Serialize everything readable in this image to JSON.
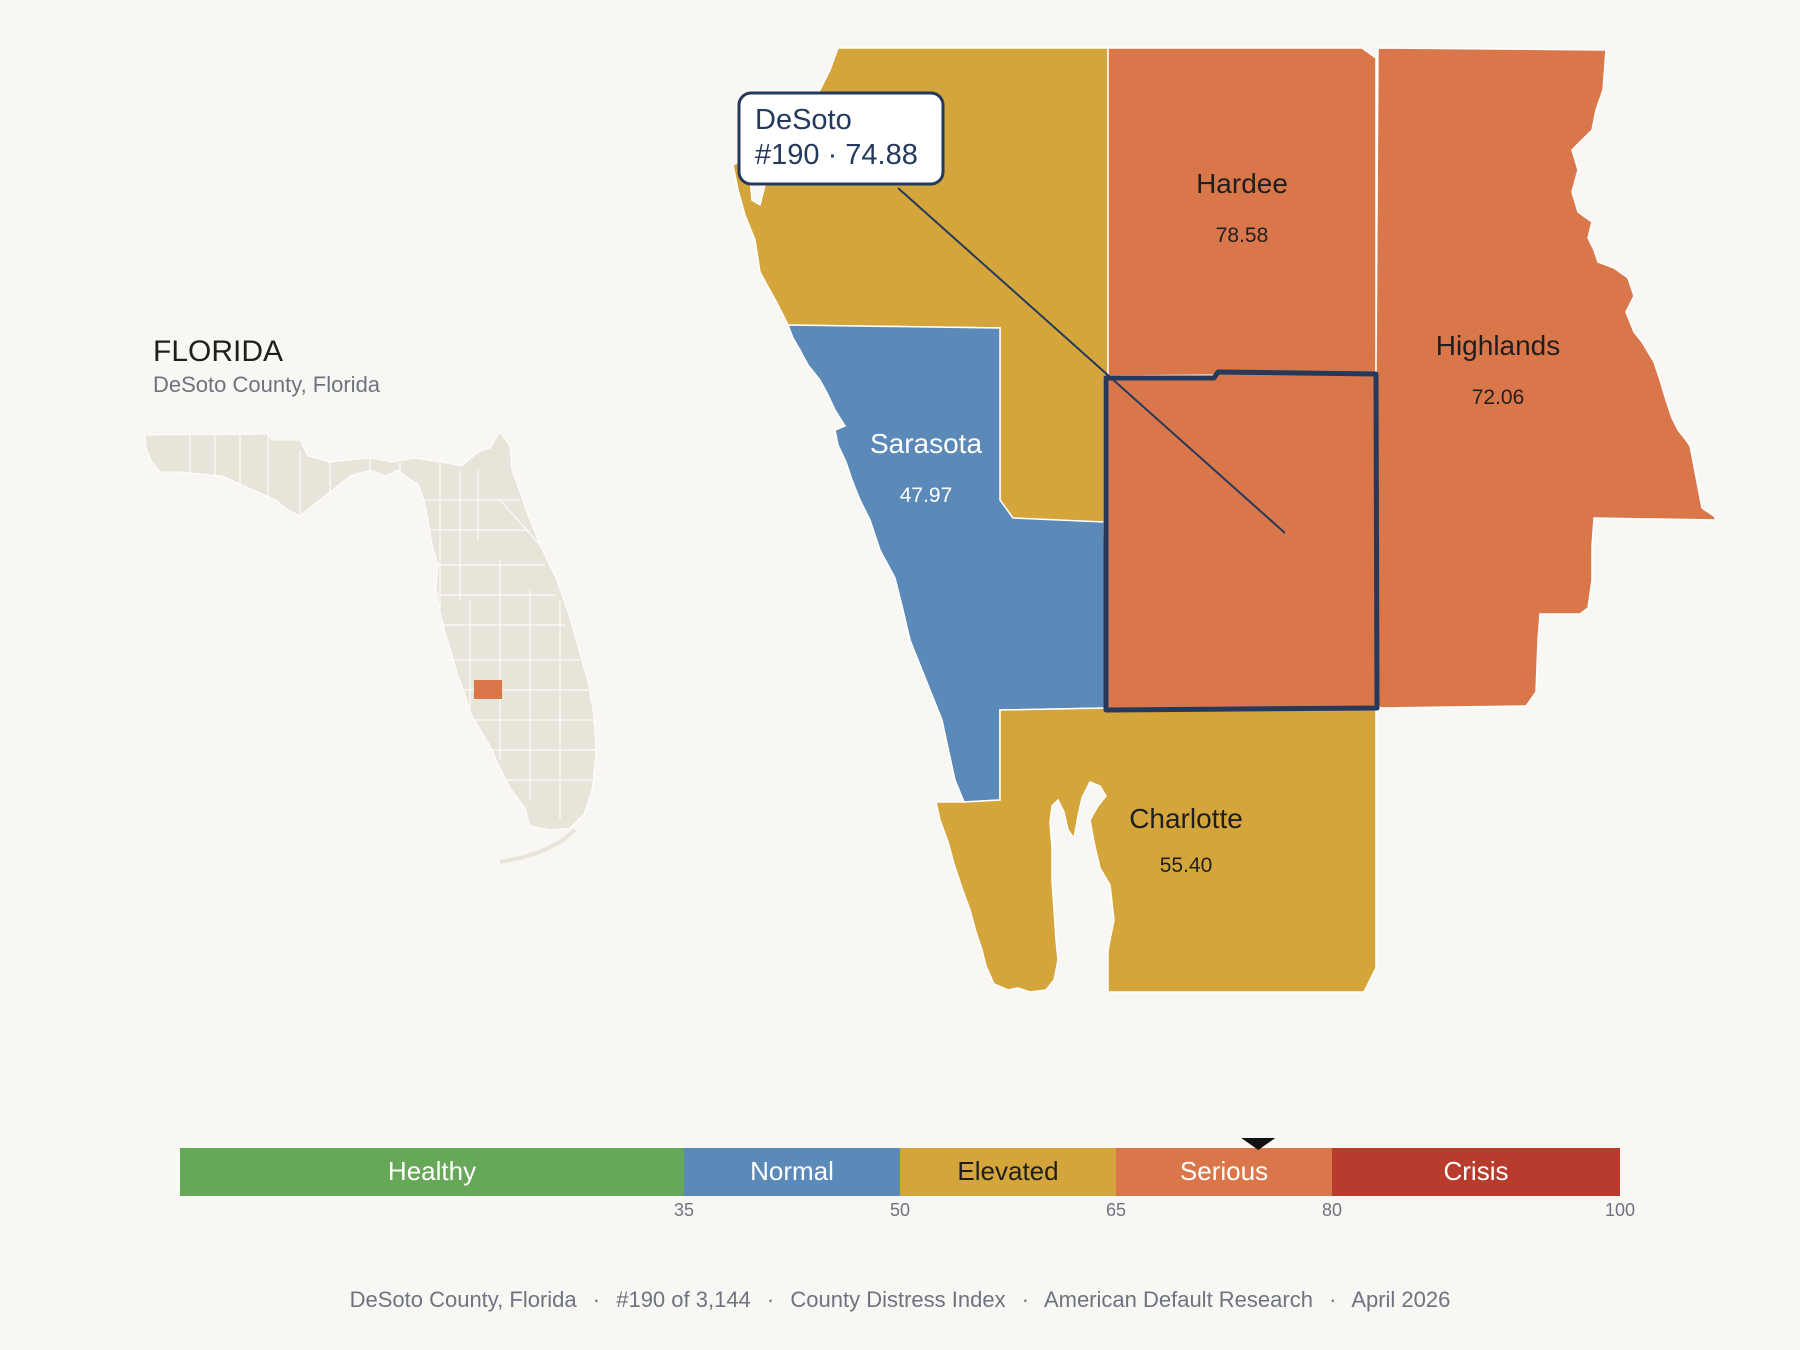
{
  "inset": {
    "state_title": "FLORIDA",
    "subtitle": "DeSoto County, Florida",
    "base_color": "#e9e4da",
    "highlight_color": "#d9774b"
  },
  "counties": {
    "hardee": {
      "name": "Hardee",
      "value": "78.58",
      "color": "#d9774b",
      "text_color": "#1f1f1f"
    },
    "highlands": {
      "name": "Highlands",
      "value": "72.06",
      "color": "#d9774b",
      "text_color": "#1f1f1f"
    },
    "sarasota": {
      "name": "Sarasota",
      "value": "47.97",
      "color": "#5b89b8",
      "text_color": "#ffffff"
    },
    "charlotte": {
      "name": "Charlotte",
      "value": "55.40",
      "color": "#d4a53a",
      "text_color": "#1f1f1f"
    },
    "manatee": {
      "color": "#d4a53a"
    },
    "desoto": {
      "color": "#d9774b",
      "outline": "#24395c"
    }
  },
  "callout": {
    "name": "DeSoto",
    "rank_score": "#190 · 74.88"
  },
  "legend": {
    "marker_value": 74.88,
    "bands": [
      {
        "label": "Healthy",
        "from": 0,
        "to": 35,
        "color": "#67a758",
        "text_color": "#ffffff"
      },
      {
        "label": "Normal",
        "from": 35,
        "to": 50,
        "color": "#5b89b8",
        "text_color": "#ffffff"
      },
      {
        "label": "Elevated",
        "from": 50,
        "to": 65,
        "color": "#d4a53a",
        "text_color": "#1f1f1f"
      },
      {
        "label": "Serious",
        "from": 65,
        "to": 80,
        "color": "#d9774b",
        "text_color": "#ffffff"
      },
      {
        "label": "Crisis",
        "from": 80,
        "to": 100,
        "color": "#b83c2d",
        "text_color": "#ffffff"
      }
    ],
    "ticks": [
      "35",
      "50",
      "65",
      "80",
      "100"
    ]
  },
  "footer": {
    "county": "DeSoto County, Florida",
    "rank": "#190 of 3,144",
    "index": "County Distress Index",
    "org": "American Default Research",
    "date": "April 2026",
    "separator": "·"
  }
}
